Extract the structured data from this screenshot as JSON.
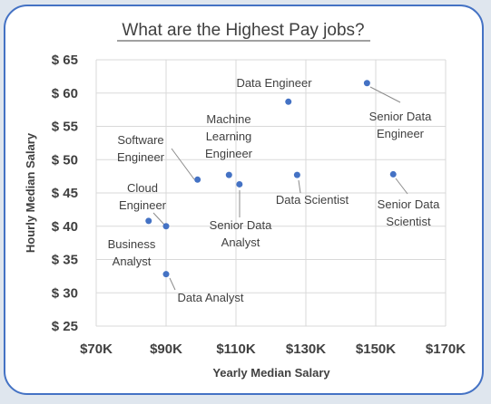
{
  "chart_data": {
    "type": "scatter",
    "title": "What are the Highest Pay jobs?",
    "xlabel": "Yearly Median Salary",
    "ylabel": "Hourly Median Salary",
    "xlim": [
      70000,
      170000
    ],
    "ylim": [
      25,
      65
    ],
    "xticks": [
      70000,
      90000,
      110000,
      130000,
      150000,
      170000
    ],
    "yticks": [
      25,
      30,
      35,
      40,
      45,
      50,
      55,
      60,
      65
    ],
    "xtick_labels": [
      "$70K",
      "$90K",
      "$110K",
      "$130K",
      "$150K",
      "$170K"
    ],
    "ytick_labels": [
      "$ 25",
      "$ 30",
      "$ 35",
      "$ 40",
      "$ 45",
      "$ 50",
      "$ 55",
      "$ 60",
      "$ 65"
    ],
    "grid": true,
    "marker_color": "#4472c4",
    "points": [
      {
        "label": "Data Engineer",
        "x": 125000,
        "y": 58.7
      },
      {
        "label": "Senior Data Engineer",
        "x": 147500,
        "y": 61.5
      },
      {
        "label": "Software Engineer",
        "x": 99000,
        "y": 47.0
      },
      {
        "label": "Machine Learning Engineer",
        "x": 108000,
        "y": 47.7
      },
      {
        "label": "Senior Data Analyst",
        "x": 111000,
        "y": 46.3
      },
      {
        "label": "Data Scientist",
        "x": 127500,
        "y": 47.7
      },
      {
        "label": "Senior Data Scientist",
        "x": 155000,
        "y": 47.8
      },
      {
        "label": "Cloud Engineer",
        "x": 90000,
        "y": 40.0
      },
      {
        "label": "Business Analyst",
        "x": 85000,
        "y": 40.8
      },
      {
        "label": "Data Analyst",
        "x": 90000,
        "y": 32.8
      }
    ]
  }
}
